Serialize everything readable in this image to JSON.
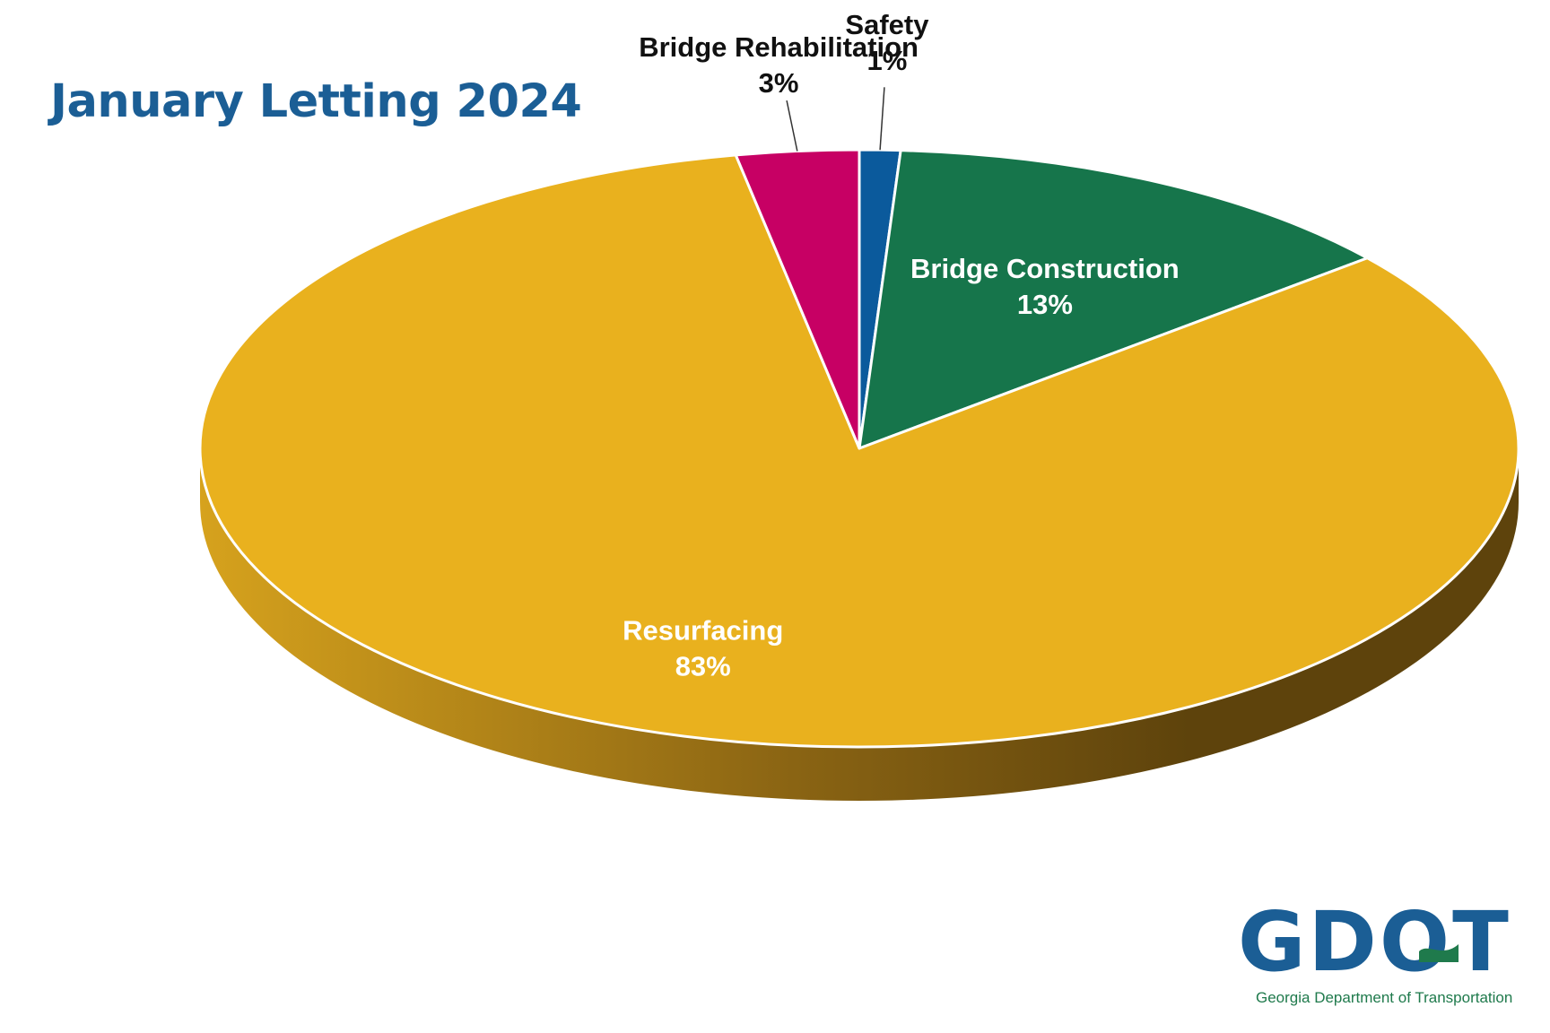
{
  "colors": {
    "title": "#1b5e95",
    "logo_blue": "#1b5e95",
    "logo_green": "#1f7a4c"
  },
  "chart_data": {
    "type": "pie",
    "title": "January Letting 2024",
    "three_d": true,
    "slices": [
      {
        "label": "Safety",
        "value": 1,
        "display": "1%",
        "color": "#0b5a9c",
        "label_color": "#111111"
      },
      {
        "label": "Bridge Construction",
        "value": 13,
        "display": "13%",
        "color": "#16754b",
        "label_color": "#ffffff"
      },
      {
        "label": "Resurfacing",
        "value": 83,
        "display": "83%",
        "color": "#e9b11e",
        "label_color": "#ffffff"
      },
      {
        "label": "Bridge Rehabilitation",
        "value": 3,
        "display": "3%",
        "color": "#c70064",
        "label_color": "#111111"
      }
    ]
  },
  "logo": {
    "letters": "GDOT",
    "subtitle": "Georgia Department of Transportation"
  }
}
